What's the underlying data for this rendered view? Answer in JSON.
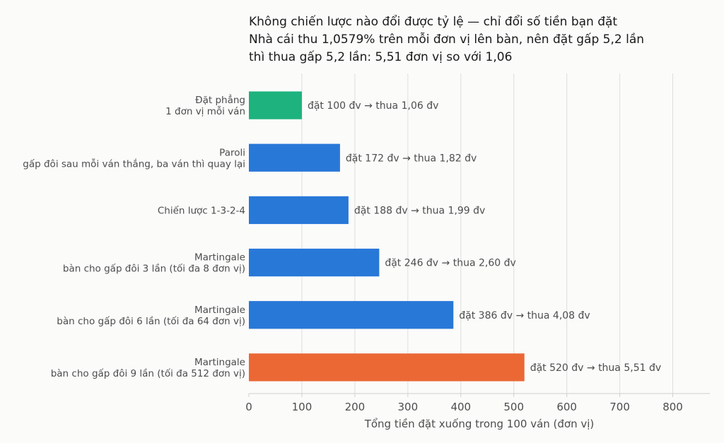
{
  "chart_data": {
    "type": "bar",
    "orientation": "horizontal",
    "title_lines": [
      "Không chiến lược nào đổi được tỷ lệ — chỉ đổi số tiền bạn đặt",
      "Nhà cái thu 1,0579% trên mỗi đơn vị lên bàn, nên đặt gấp 5,2 lần",
      "thì thua gấp 5,2 lần: 5,51 đơn vị so với 1,06"
    ],
    "xlabel": "Tổng tiền đặt xuống trong 100 ván (đơn vị)",
    "xlim": [
      0,
      870
    ],
    "xticks": [
      0,
      100,
      200,
      300,
      400,
      500,
      600,
      700,
      800
    ],
    "grid": "vertical",
    "categories": [
      [
        "Đặt phẳng",
        "1 đơn vị mỗi ván"
      ],
      [
        "Paroli",
        "gấp đôi sau mỗi ván thắng, ba ván thì quay lại"
      ],
      [
        "Chiến lược 1-3-2-4"
      ],
      [
        "Martingale",
        "bàn cho gấp đôi 3 lần (tối đa 8 đơn vị)"
      ],
      [
        "Martingale",
        "bàn cho gấp đôi 6 lần (tối đa 64 đơn vị)"
      ],
      [
        "Martingale",
        "bàn cho gấp đôi 9 lần (tối đa 512 đơn vị)"
      ]
    ],
    "values": [
      100,
      172,
      188,
      246,
      386,
      520
    ],
    "data_labels": [
      "đặt 100 đv   →   thua 1,06 đv",
      "đặt 172 đv   →   thua 1,82 đv",
      "đặt 188 đv   →   thua 1,99 đv",
      "đặt 246 đv   →   thua 2,60 đv",
      "đặt 386 đv   →   thua 4,08 đv",
      "đặt 520 đv   →   thua 5,51 đv"
    ],
    "bar_colors": [
      "#1db27e",
      "#2878d8",
      "#2878d8",
      "#2878d8",
      "#2878d8",
      "#eb6834"
    ]
  }
}
